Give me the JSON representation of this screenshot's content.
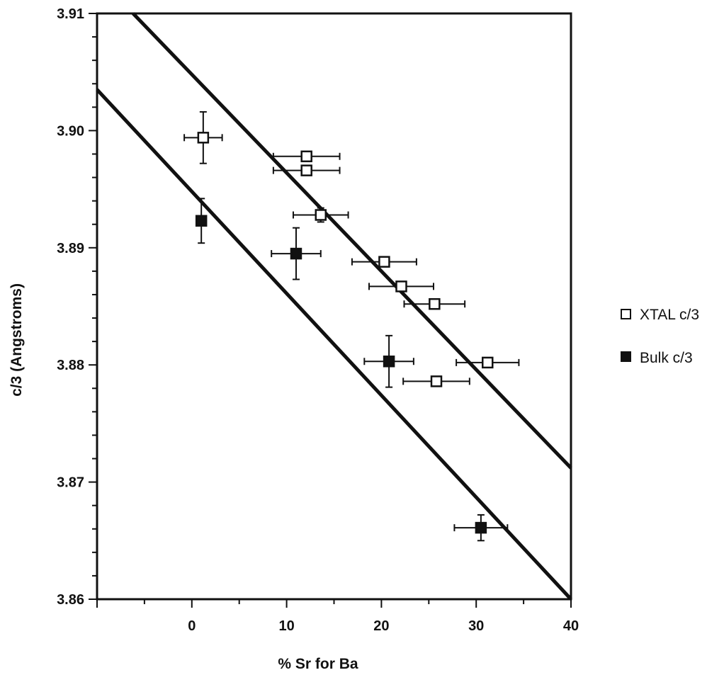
{
  "chart_data": {
    "type": "scatter",
    "title": "",
    "xlabel": "% Sr for Ba",
    "ylabel": "c/3 (Angstroms)",
    "xlim": [
      -10,
      40
    ],
    "ylim": [
      3.86,
      3.91
    ],
    "x_ticks": [
      0,
      10,
      20,
      30,
      40
    ],
    "x_tick_labels": [
      "0",
      "10",
      "20",
      "30",
      "40"
    ],
    "y_ticks": [
      3.86,
      3.87,
      3.88,
      3.89,
      3.9,
      3.91
    ],
    "y_tick_labels": [
      "3.86",
      "3.87",
      "3.88",
      "3.89",
      "3.90",
      "3.91"
    ],
    "grid": false,
    "legend_position": "right",
    "series": [
      {
        "name": "XTAL c/3",
        "marker": "open-square",
        "points": [
          {
            "x": 1.2,
            "y": 3.8994,
            "xerr": 2.0,
            "yerr": 0.0022
          },
          {
            "x": 12.1,
            "y": 3.8978,
            "xerr": 3.5,
            "yerr": 0.0
          },
          {
            "x": 12.1,
            "y": 3.8966,
            "xerr": 3.5,
            "yerr": 0.0004
          },
          {
            "x": 13.6,
            "y": 3.8928,
            "xerr": 2.9,
            "yerr": 0.0006
          },
          {
            "x": 20.3,
            "y": 3.8888,
            "xerr": 3.4,
            "yerr": 0.0
          },
          {
            "x": 22.1,
            "y": 3.8867,
            "xerr": 3.4,
            "yerr": 0.0
          },
          {
            "x": 25.6,
            "y": 3.8852,
            "xerr": 3.2,
            "yerr": 0.0
          },
          {
            "x": 31.2,
            "y": 3.8802,
            "xerr": 3.3,
            "yerr": 0.0
          },
          {
            "x": 25.8,
            "y": 3.8786,
            "xerr": 3.5,
            "yerr": 0.0
          }
        ]
      },
      {
        "name": "Bulk c/3",
        "marker": "filled-square",
        "points": [
          {
            "x": 1.0,
            "y": 3.8923,
            "xerr": 0.0,
            "yerr": 0.0019
          },
          {
            "x": 11.0,
            "y": 3.8895,
            "xerr": 2.6,
            "yerr": 0.0022
          },
          {
            "x": 20.8,
            "y": 3.8803,
            "xerr": 2.6,
            "yerr": 0.0022
          },
          {
            "x": 30.5,
            "y": 3.8661,
            "xerr": 2.8,
            "yerr": 0.0011
          }
        ]
      }
    ],
    "lines": [
      {
        "x1": -6.2,
        "y1": 3.91,
        "x2": 40,
        "y2": 3.8712
      },
      {
        "x1": -10,
        "y1": 3.9035,
        "x2": 40,
        "y2": 3.86
      }
    ],
    "legend": {
      "entries": [
        {
          "label": "XTAL c/3",
          "marker": "open-square"
        },
        {
          "label": "Bulk c/3",
          "marker": "filled-square"
        }
      ]
    }
  }
}
